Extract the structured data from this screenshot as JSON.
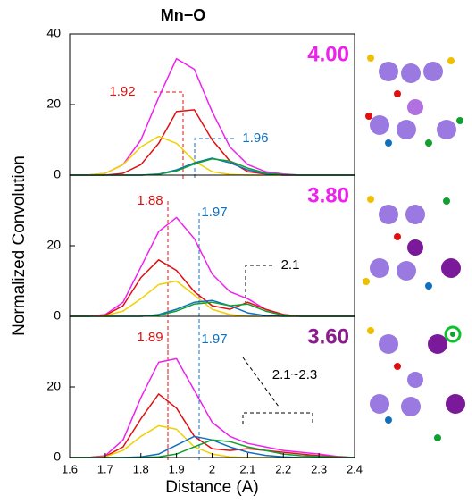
{
  "chart_data": [
    {
      "type": "line",
      "title": "Mn−O",
      "panel_label": "4.00",
      "panel_label_color": "#ee22ee",
      "x": [
        1.6,
        1.65,
        1.7,
        1.75,
        1.8,
        1.85,
        1.9,
        1.95,
        2.0,
        2.05,
        2.1,
        2.15,
        2.2,
        2.25,
        2.3,
        2.35,
        2.4
      ],
      "series": [
        {
          "color": "#ee22ee",
          "values": [
            0,
            0,
            0.5,
            3,
            10,
            22,
            33,
            30,
            18,
            8,
            3,
            1,
            0.3,
            0,
            0,
            0,
            0
          ]
        },
        {
          "color": "#e01010",
          "values": [
            0,
            0,
            0,
            0.5,
            3,
            9,
            18,
            18.5,
            10,
            4,
            1,
            0.3,
            0,
            0,
            0,
            0,
            0
          ]
        },
        {
          "color": "#f0d000",
          "values": [
            0,
            0,
            0.5,
            3,
            8,
            11,
            9,
            4,
            1,
            0.2,
            0,
            0,
            0,
            0,
            0,
            0,
            0
          ]
        },
        {
          "color": "#1070c0",
          "values": [
            0,
            0,
            0,
            0,
            0,
            0.3,
            1.5,
            3.5,
            4.8,
            3.5,
            1.5,
            0.4,
            0,
            0,
            0,
            0,
            0
          ]
        },
        {
          "color": "#10a030",
          "values": [
            0,
            0,
            0,
            0,
            0,
            0.2,
            1.2,
            3.2,
            4.6,
            4,
            2,
            0.6,
            0.1,
            0,
            0,
            0,
            0
          ]
        }
      ],
      "xlim": [
        1.6,
        2.4
      ],
      "ylim": [
        0,
        40
      ],
      "yticks": [
        0,
        20,
        40
      ],
      "annotations": [
        {
          "text": "1.92",
          "color": "#e01010"
        },
        {
          "text": "1.96",
          "color": "#1070c0"
        }
      ]
    },
    {
      "type": "line",
      "panel_label": "3.80",
      "panel_label_color": "#ee22ee",
      "ylabel": "Normalized Convolution",
      "x": [
        1.6,
        1.65,
        1.7,
        1.75,
        1.8,
        1.85,
        1.9,
        1.95,
        2.0,
        2.05,
        2.1,
        2.15,
        2.2,
        2.25,
        2.3,
        2.35,
        2.4
      ],
      "series": [
        {
          "color": "#ee22ee",
          "values": [
            0,
            0,
            0.5,
            4,
            14,
            24,
            28,
            22,
            12,
            7,
            5,
            2,
            0.5,
            0,
            0,
            0,
            0
          ]
        },
        {
          "color": "#e01010",
          "values": [
            0,
            0,
            0.3,
            3,
            11,
            16,
            13,
            7,
            3,
            2,
            4,
            2,
            0.5,
            0,
            0,
            0,
            0
          ]
        },
        {
          "color": "#f0d000",
          "values": [
            0,
            0,
            0.2,
            1.5,
            5,
            9,
            10,
            6,
            2,
            0.5,
            0,
            0,
            0,
            0,
            0,
            0,
            0
          ]
        },
        {
          "color": "#1070c0",
          "values": [
            0,
            0,
            0,
            0,
            0,
            0.5,
            2,
            4,
            4.5,
            3,
            1,
            0.2,
            0,
            0,
            0,
            0,
            0
          ]
        },
        {
          "color": "#10a030",
          "values": [
            0,
            0,
            0,
            0,
            0,
            0.3,
            1.5,
            3.5,
            4,
            3,
            3.5,
            1.5,
            0.3,
            0,
            0,
            0,
            0
          ]
        }
      ],
      "xlim": [
        1.6,
        2.4
      ],
      "ylim": [
        0,
        40
      ],
      "yticks": [
        0,
        20
      ],
      "annotations": [
        {
          "text": "1.88",
          "color": "#e01010"
        },
        {
          "text": "1.97",
          "color": "#1070c0"
        },
        {
          "text": "2.1",
          "color": "#000000"
        }
      ]
    },
    {
      "type": "line",
      "panel_label": "3.60",
      "panel_label_color": "#8b1a8b",
      "xlabel": "Distance (A)",
      "x": [
        1.6,
        1.65,
        1.7,
        1.75,
        1.8,
        1.85,
        1.9,
        1.95,
        2.0,
        2.05,
        2.1,
        2.15,
        2.2,
        2.25,
        2.3,
        2.35,
        2.4
      ],
      "series": [
        {
          "color": "#ee22ee",
          "values": [
            0,
            0,
            0.5,
            5,
            17,
            27,
            28,
            19,
            10,
            6,
            4,
            3,
            2,
            1.5,
            1,
            0.3,
            0
          ]
        },
        {
          "color": "#e01010",
          "values": [
            0,
            0,
            0.3,
            3,
            11,
            18,
            14,
            6,
            2.5,
            2,
            2.5,
            2,
            1.5,
            1,
            0.5,
            0.2,
            0
          ]
        },
        {
          "color": "#f0d000",
          "values": [
            0,
            0,
            0.2,
            2,
            6,
            9,
            8,
            3,
            1,
            0.2,
            0,
            0,
            0,
            0,
            0,
            0,
            0
          ]
        },
        {
          "color": "#1070c0",
          "values": [
            0,
            0,
            0,
            0,
            0.2,
            1,
            3.5,
            6,
            5,
            3,
            1.5,
            0.6,
            0.2,
            0,
            0,
            0,
            0
          ]
        },
        {
          "color": "#10a030",
          "values": [
            0,
            0,
            0,
            0,
            0,
            0.2,
            1,
            3,
            5,
            4.5,
            3,
            2,
            1,
            0.5,
            0.3,
            0.1,
            0
          ]
        }
      ],
      "xlim": [
        1.6,
        2.4
      ],
      "ylim": [
        0,
        40
      ],
      "yticks": [
        0,
        20
      ],
      "xticks": [
        1.6,
        1.7,
        1.8,
        1.9,
        {
          "value": 2.0,
          "label": "2"
        },
        2.1,
        2.2,
        2.3,
        2.4
      ],
      "annotations": [
        {
          "text": "1.89",
          "color": "#e01010"
        },
        {
          "text": "1.97",
          "color": "#1070c0"
        },
        {
          "text": "2.1~2.3",
          "color": "#000000"
        }
      ]
    }
  ]
}
